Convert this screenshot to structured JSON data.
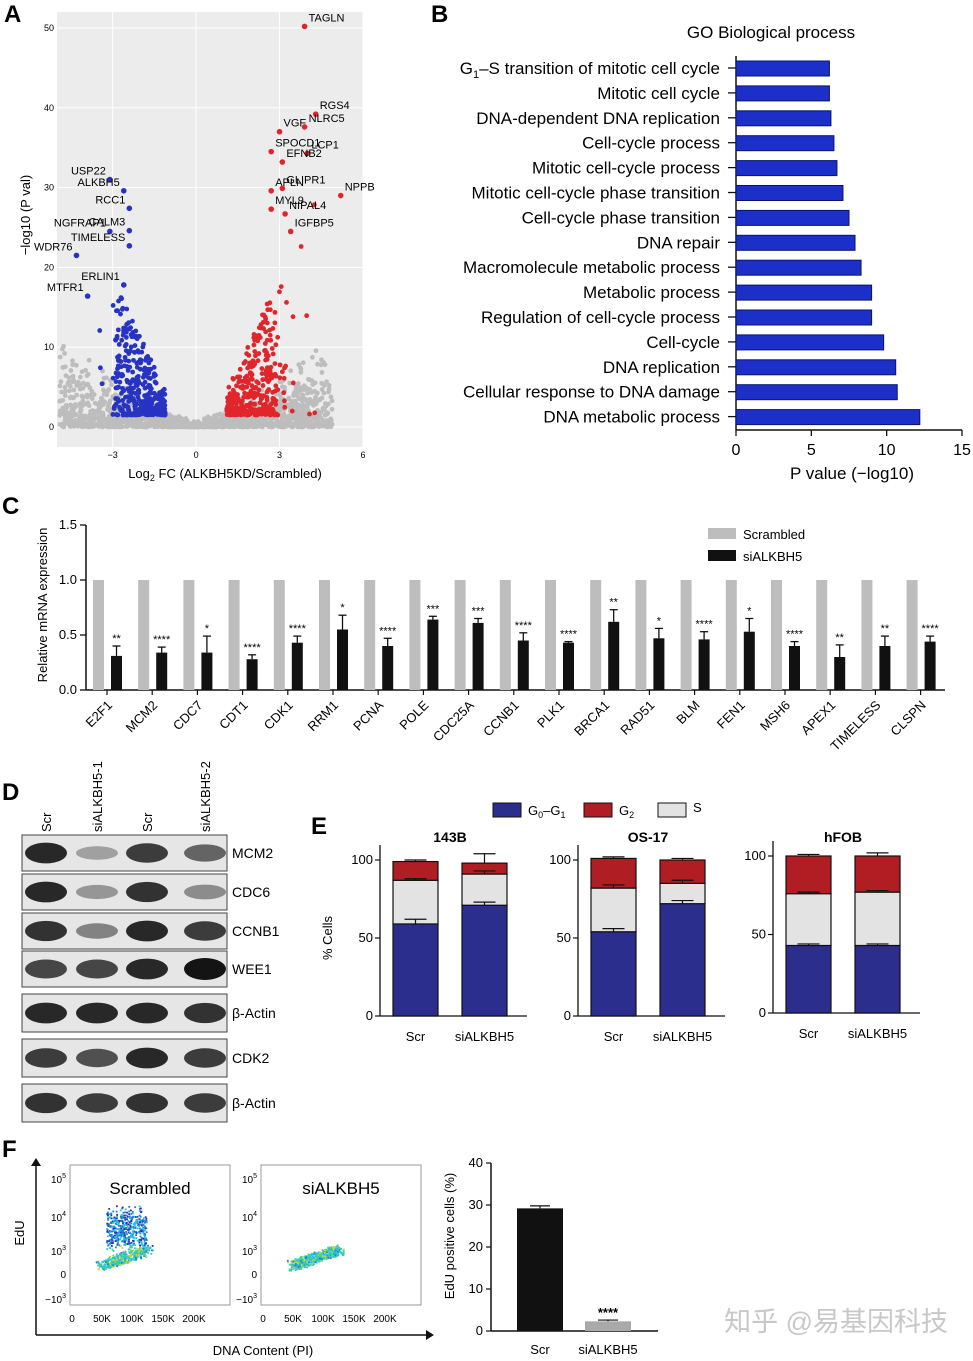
{
  "panel_letters": {
    "a": "A",
    "b": "B",
    "c": "C",
    "d": "D",
    "e": "E",
    "f": "F"
  },
  "colors": {
    "up": "#e0262b",
    "down": "#2733c2",
    "ns": "#bdbdbd",
    "bar_blue": "#1c2fc9",
    "scr_gray": "#bdbdbd",
    "g1": "#2b2e8c",
    "g2": "#b01e23",
    "s": "#e3e3e3"
  },
  "watermark": "知乎 @易基因科技",
  "chart_data": [
    {
      "id": "A",
      "type": "scatter",
      "title": "",
      "xlabel_prefix": "Log",
      "xlabel_sub": "2",
      "xlabel_suffix": " FC (ALKBH5KD/Scrambled)",
      "ylabel": "−log10 (P val)",
      "xlim": [
        -5,
        6
      ],
      "ylim": [
        0,
        52
      ],
      "x_ticks": [
        "−3",
        "0",
        "3",
        "6"
      ],
      "x_tick_values": [
        -3,
        0,
        3,
        6
      ],
      "y_ticks": [
        "0",
        "10",
        "20",
        "30",
        "40",
        "50"
      ],
      "y_tick_values": [
        0,
        10,
        20,
        30,
        40,
        50
      ],
      "labeled_points": [
        {
          "label": "TAGLN",
          "x": 3.9,
          "y": 50.2,
          "group": "up"
        },
        {
          "label": "RGS4",
          "x": 4.3,
          "y": 39.2,
          "group": "up"
        },
        {
          "label": "VGF",
          "x": 3.0,
          "y": 37.0,
          "group": "up"
        },
        {
          "label": "NLRC5",
          "x": 3.9,
          "y": 37.6,
          "group": "up"
        },
        {
          "label": "SPOCD1",
          "x": 2.7,
          "y": 34.5,
          "group": "up"
        },
        {
          "label": "LCP1",
          "x": 4.0,
          "y": 34.3,
          "group": "up"
        },
        {
          "label": "EFNB2",
          "x": 3.1,
          "y": 33.2,
          "group": "up"
        },
        {
          "label": "APLN",
          "x": 2.7,
          "y": 29.6,
          "group": "up"
        },
        {
          "label": "GLIPR1",
          "x": 3.1,
          "y": 29.9,
          "group": "up"
        },
        {
          "label": "NPPB",
          "x": 5.2,
          "y": 29.0,
          "group": "up"
        },
        {
          "label": "MYL9",
          "x": 2.7,
          "y": 27.3,
          "group": "up"
        },
        {
          "label": "NIPAL4",
          "x": 3.2,
          "y": 26.7,
          "group": "up"
        },
        {
          "label": "IGFBP5",
          "x": 3.4,
          "y": 24.5,
          "group": "up"
        },
        {
          "label": "USP22",
          "x": -3.1,
          "y": 31.0,
          "group": "down"
        },
        {
          "label": "ALKBH5",
          "x": -2.6,
          "y": 29.6,
          "group": "down"
        },
        {
          "label": "RCC1",
          "x": -2.4,
          "y": 27.4,
          "group": "down"
        },
        {
          "label": "NGFRAP1",
          "x": -3.1,
          "y": 24.5,
          "group": "down"
        },
        {
          "label": "CALM3",
          "x": -2.4,
          "y": 24.6,
          "group": "down"
        },
        {
          "label": "TIMELESS",
          "x": -2.4,
          "y": 22.7,
          "group": "down"
        },
        {
          "label": "WDR76",
          "x": -4.3,
          "y": 21.5,
          "group": "down"
        },
        {
          "label": "MTFR1",
          "x": -3.9,
          "y": 16.4,
          "group": "down"
        },
        {
          "label": "ERLIN1",
          "x": -2.6,
          "y": 17.8,
          "group": "down"
        }
      ]
    },
    {
      "id": "B",
      "type": "bar",
      "orientation": "horizontal",
      "title": "GO Biological process",
      "categories": [
        "G1–S transition of mitotic cell cycle",
        "Mitotic cell cycle",
        "DNA-dependent DNA replication",
        "Cell-cycle process",
        "Mitotic cell-cycle process",
        "Mitotic cell-cycle phase transition",
        "Cell-cycle phase transition",
        "DNA repair",
        "Macromolecule metabolic process",
        "Metabolic process",
        "Regulation of cell-cycle process",
        "Cell-cycle",
        "DNA replication",
        "Cellular response to DNA damage",
        "DNA metabolic process"
      ],
      "values": [
        6.2,
        6.2,
        6.3,
        6.5,
        6.7,
        7.1,
        7.5,
        7.9,
        8.3,
        9.0,
        9.0,
        9.8,
        10.6,
        10.7,
        12.2
      ],
      "xlabel": "P value (−log10)",
      "xlim": [
        0,
        15
      ],
      "x_ticks": [
        "0",
        "5",
        "10",
        "15"
      ]
    },
    {
      "id": "C",
      "type": "bar",
      "title": "",
      "ylabel": "Relative mRNA expression",
      "ylim": [
        0,
        1.5
      ],
      "y_ticks": [
        "0.0",
        "0.5",
        "1.0",
        "1.5"
      ],
      "categories": [
        "E2F1",
        "MCM2",
        "CDC7",
        "CDT1",
        "CDK1",
        "RRM1",
        "PCNA",
        "POLE",
        "CDC25A",
        "CCNB1",
        "PLK1",
        "BRCA1",
        "RAD51",
        "BLM",
        "FEN1",
        "MSH6",
        "APEX1",
        "TIMELESS",
        "CLSPN"
      ],
      "series": [
        {
          "name": "Scrambled",
          "values": [
            1.0,
            1.0,
            1.0,
            1.0,
            1.0,
            1.0,
            1.0,
            1.0,
            1.0,
            1.0,
            1.0,
            1.0,
            1.0,
            1.0,
            1.0,
            1.0,
            1.0,
            1.0,
            1.0
          ]
        },
        {
          "name": "siALKBH5",
          "values": [
            0.31,
            0.34,
            0.34,
            0.28,
            0.43,
            0.55,
            0.4,
            0.64,
            0.61,
            0.45,
            0.43,
            0.62,
            0.47,
            0.46,
            0.53,
            0.4,
            0.3,
            0.4,
            0.44
          ],
          "errors": [
            0.09,
            0.05,
            0.15,
            0.04,
            0.06,
            0.13,
            0.07,
            0.03,
            0.04,
            0.07,
            0.01,
            0.11,
            0.09,
            0.07,
            0.12,
            0.04,
            0.11,
            0.09,
            0.05
          ]
        }
      ],
      "significance": [
        "**",
        "****",
        "*",
        "****",
        "****",
        "*",
        "****",
        "***",
        "***",
        "****",
        "****",
        "**",
        "*",
        "****",
        "*",
        "****",
        "**",
        "**",
        "****"
      ]
    },
    {
      "id": "E",
      "type": "bar",
      "stacked": true,
      "ylabel": "% Cells",
      "legend": [
        {
          "parts": [
            "G",
            "0",
            "–G",
            "1"
          ]
        },
        {
          "parts": [
            "G",
            "2"
          ]
        },
        {
          "parts": [
            "S"
          ]
        }
      ],
      "subplots": [
        {
          "title": "143B",
          "categories": [
            "Scr",
            "siALKBH5"
          ],
          "G0G1": [
            59,
            71
          ],
          "S": [
            28,
            20
          ],
          "G2": [
            12,
            7
          ],
          "err_total": [
            1,
            6
          ],
          "err_g1": [
            3,
            2
          ],
          "err_s": [
            1,
            2
          ],
          "y_ticks": [
            "0",
            "50",
            "100"
          ]
        },
        {
          "title": "OS-17",
          "categories": [
            "Scr",
            "siALKBH5"
          ],
          "G0G1": [
            54,
            72
          ],
          "S": [
            28,
            13
          ],
          "G2": [
            19,
            15
          ],
          "err_total": [
            1,
            1
          ],
          "err_g1": [
            2,
            2
          ],
          "err_s": [
            2,
            2
          ],
          "y_ticks": [
            "0",
            "50",
            "100"
          ]
        },
        {
          "title": "hFOB",
          "categories": [
            "Scr",
            "siALKBH5"
          ],
          "G0G1": [
            43,
            43
          ],
          "S": [
            33,
            34
          ],
          "G2": [
            24,
            23
          ],
          "err_total": [
            1,
            2
          ],
          "err_g1": [
            1,
            1
          ],
          "err_s": [
            1,
            1
          ],
          "y_ticks": [
            "0",
            "50",
            "100"
          ]
        }
      ]
    },
    {
      "id": "F",
      "type": "bar",
      "ylabel": "EdU positive cells (%)",
      "categories": [
        "Scr",
        "siALKBH5"
      ],
      "values": [
        29.2,
        2.3
      ],
      "errors": [
        0.6,
        0.3
      ],
      "significance": [
        "",
        "****"
      ],
      "ylim": [
        0,
        40
      ],
      "y_ticks": [
        "0",
        "10",
        "20",
        "30",
        "40"
      ]
    }
  ],
  "blot": {
    "lane_labels": [
      "Scr",
      "siALKBH5-1",
      "Scr",
      "siALKBH5-2"
    ],
    "rows": [
      {
        "label": "MCM2",
        "intensities": [
          0.9,
          0.3,
          0.8,
          0.6
        ]
      },
      {
        "label": "CDC6",
        "intensities": [
          0.9,
          0.35,
          0.85,
          0.4
        ]
      },
      {
        "label": "CCNB1",
        "intensities": [
          0.85,
          0.45,
          0.9,
          0.8
        ]
      },
      {
        "label": "WEE1",
        "intensities": [
          0.75,
          0.75,
          0.9,
          1.0
        ]
      },
      {
        "label": "β-Actin",
        "intensities": [
          0.9,
          0.9,
          0.9,
          0.85
        ]
      },
      {
        "label": "CDK2",
        "intensities": [
          0.8,
          0.7,
          0.9,
          0.8
        ]
      },
      {
        "label": "β-Actin",
        "intensities": [
          0.85,
          0.8,
          0.85,
          0.8
        ]
      }
    ]
  },
  "flow": {
    "xlabel": "DNA Content (PI)",
    "ylabel": "EdU",
    "x_ticks": [
      "0",
      "50K",
      "100K",
      "150K",
      "200K"
    ],
    "y_tick_bases": [
      "10",
      "10",
      "10",
      "0",
      "−10"
    ],
    "y_tick_exps": [
      "5",
      "4",
      "3",
      "",
      "3"
    ],
    "plots": [
      {
        "title": "Scrambled"
      },
      {
        "title": "siALKBH5"
      }
    ]
  }
}
